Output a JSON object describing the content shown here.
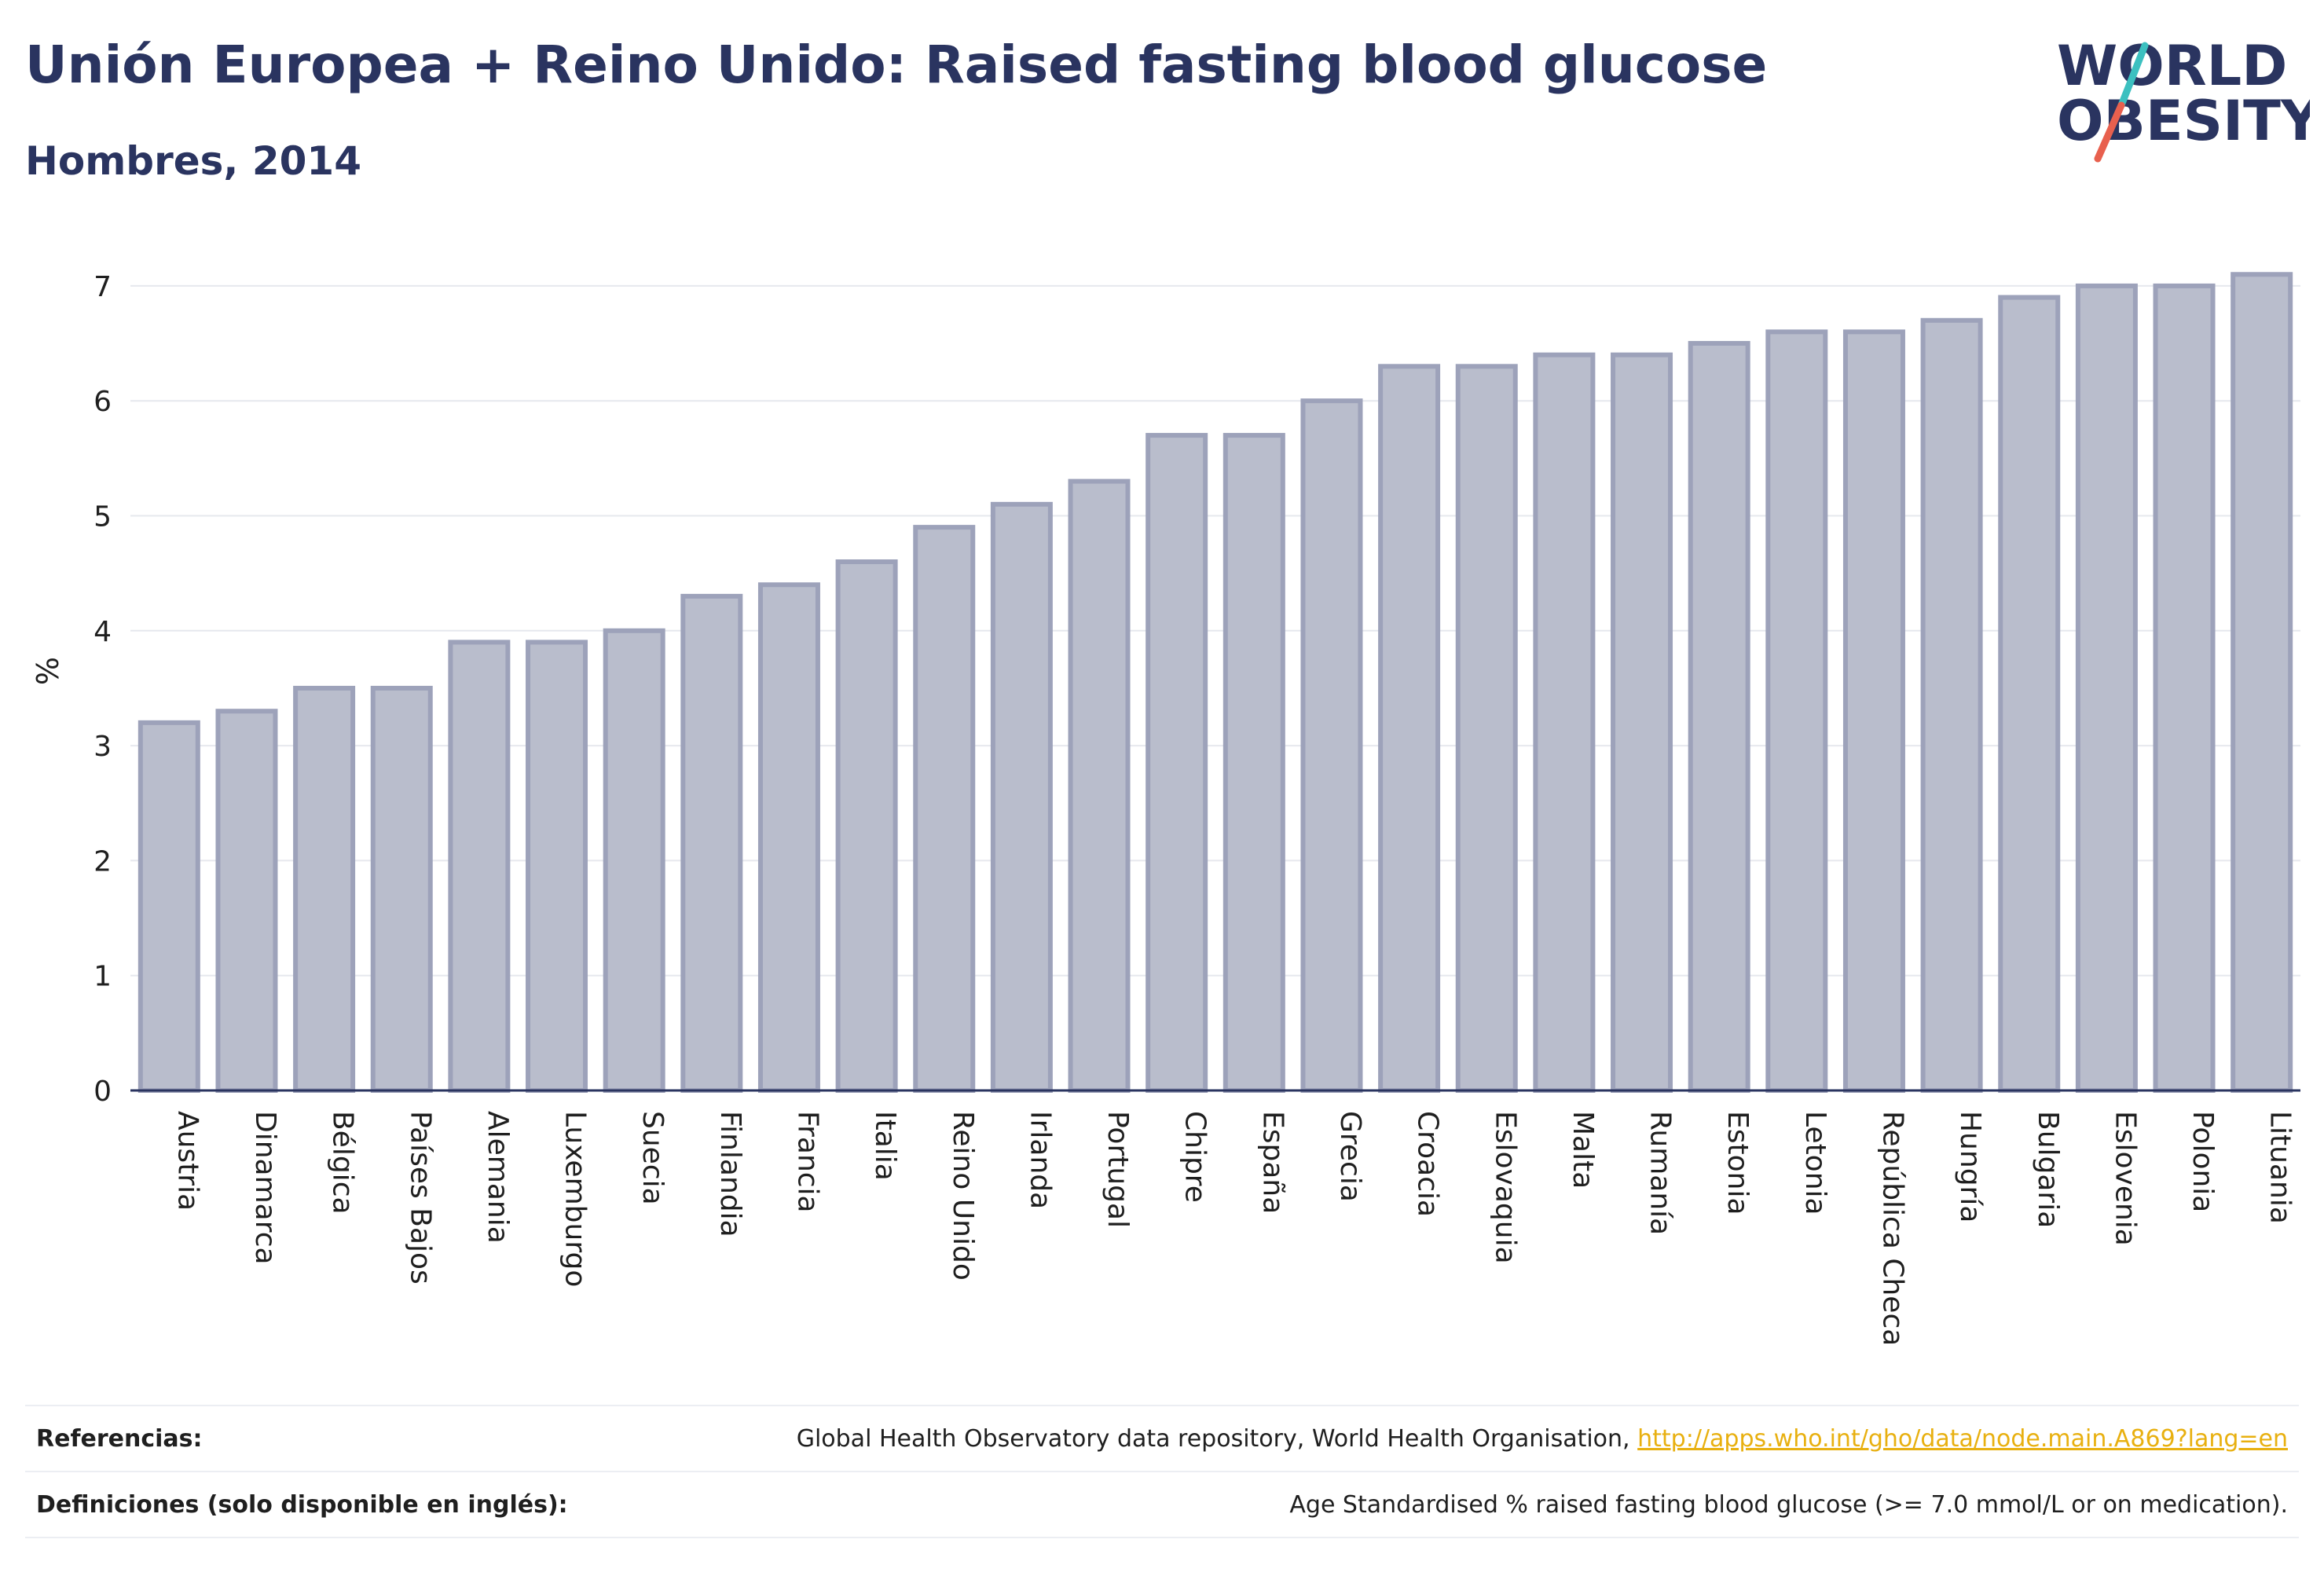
{
  "header": {
    "title": "Unión Europea + Reino Unido: Raised fasting blood glucose",
    "subtitle": "Hombres, 2014"
  },
  "logo": {
    "line1": "WORLD",
    "line2": "OBESITY",
    "colors": {
      "text": "#2a3460",
      "slash_teal": "#3cc0c0",
      "slash_coral": "#e8604e"
    }
  },
  "chart_data": {
    "type": "bar",
    "ylabel": "%",
    "xlabel": "",
    "ylim": [
      0,
      7.3
    ],
    "yticks": [
      0,
      1,
      2,
      3,
      4,
      5,
      6,
      7
    ],
    "grid": true,
    "categories": [
      "Austria",
      "Dinamarca",
      "Bélgica",
      "Países Bajos",
      "Alemania",
      "Luxemburgo",
      "Suecia",
      "Finlandia",
      "Francia",
      "Italia",
      "Reino Unido",
      "Irlanda",
      "Portugal",
      "Chipre",
      "España",
      "Grecia",
      "Croacia",
      "Eslovaquia",
      "Malta",
      "Rumanía",
      "Estonia",
      "Letonia",
      "República Checa",
      "Hungría",
      "Bulgaria",
      "Eslovenia",
      "Polonia",
      "Lituania"
    ],
    "values": [
      3.2,
      3.3,
      3.5,
      3.5,
      3.9,
      3.9,
      4.0,
      4.3,
      4.4,
      4.6,
      4.9,
      5.1,
      5.3,
      5.7,
      5.7,
      6.0,
      6.3,
      6.3,
      6.4,
      6.4,
      6.5,
      6.6,
      6.6,
      6.7,
      6.9,
      7.0,
      7.0,
      7.1
    ],
    "colors": {
      "bar_fill": "#b9bdcc",
      "bar_stroke": "#9da2ba",
      "grid": "#e6e8ee",
      "axis": "#2a3460"
    }
  },
  "footer": {
    "references_label": "Referencias:",
    "references_text": "Global Health Observatory data repository, World Health Organisation,",
    "references_link": "http://apps.who.int/gho/data/node.main.A869?lang=en",
    "definitions_label": "Definiciones (solo disponible en inglés):",
    "definitions_text": "Age Standardised % raised fasting blood glucose (>= 7.0 mmol/L or on medication)."
  }
}
